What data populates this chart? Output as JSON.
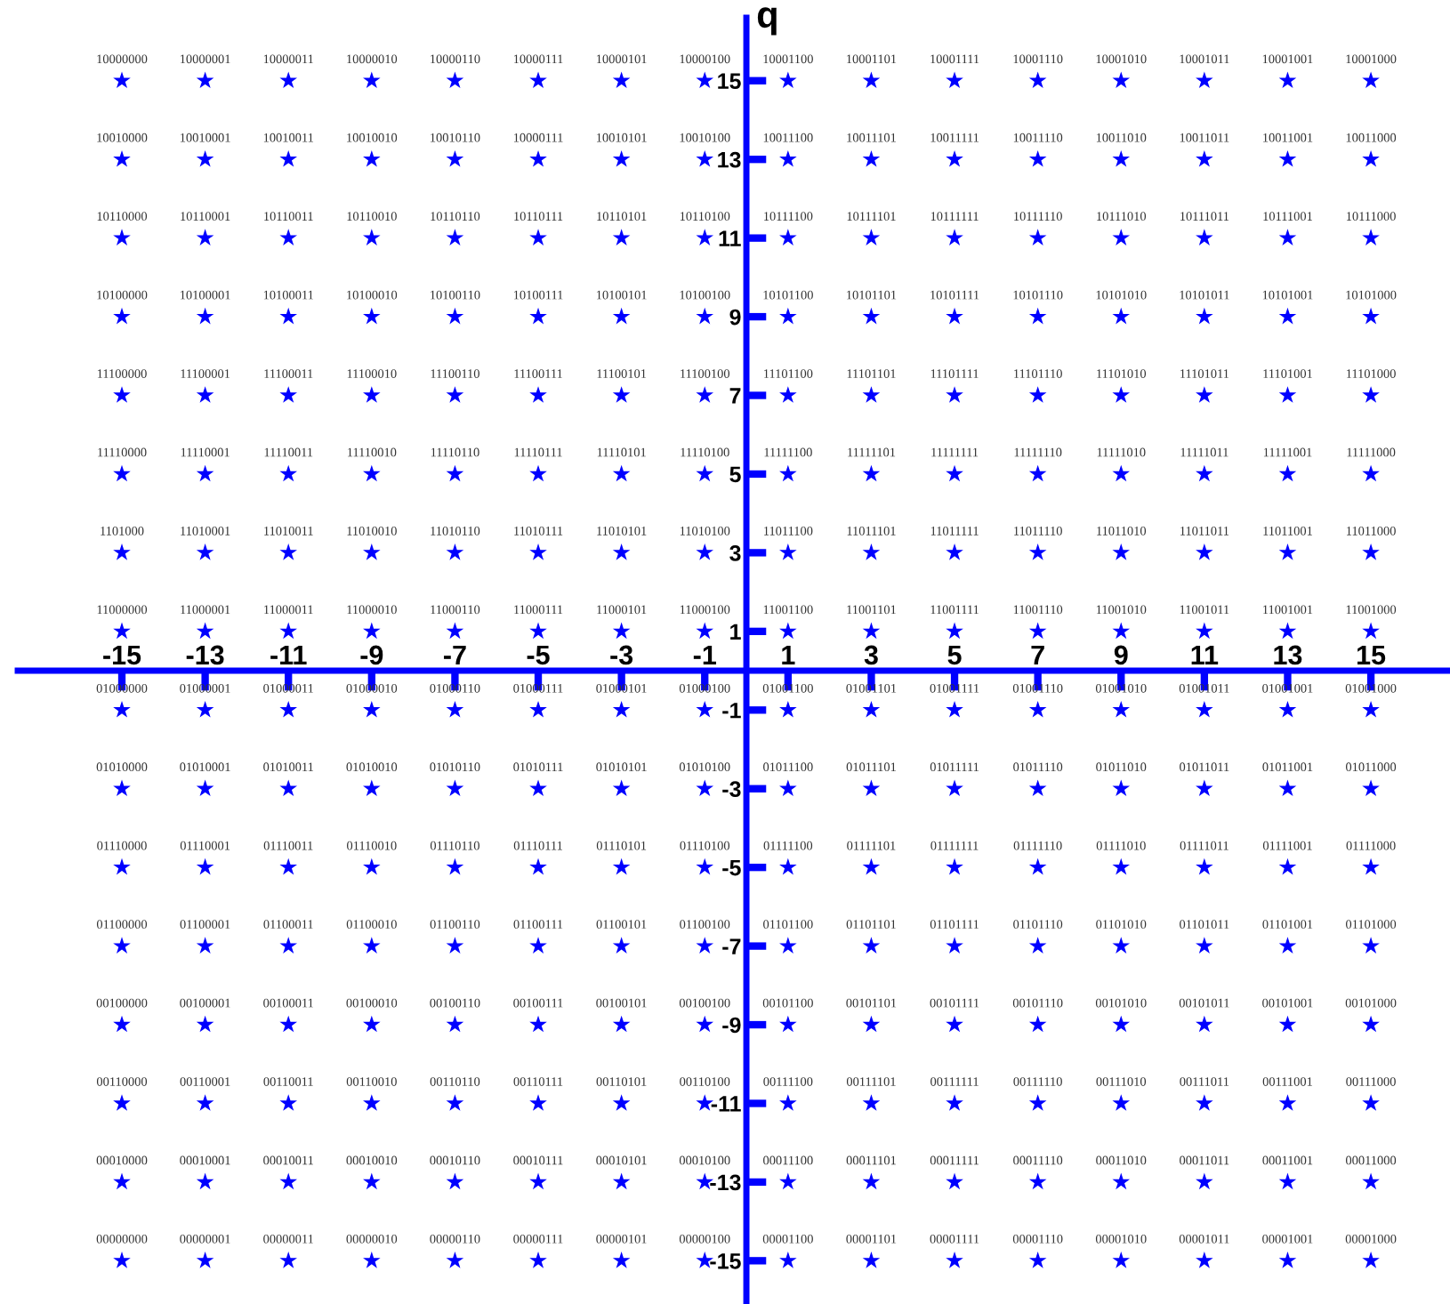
{
  "chart_data": {
    "type": "scatter",
    "ylabel": "q",
    "marker": "star",
    "grid": false,
    "xlim": [
      -17.5,
      16.9
    ],
    "ylim": [
      -16.1,
      16.6
    ],
    "xticks": [
      -15,
      -13,
      -11,
      -9,
      -7,
      -5,
      -3,
      -1,
      1,
      3,
      5,
      7,
      9,
      11,
      13,
      15
    ],
    "yticks": [
      -15,
      -13,
      -11,
      -9,
      -7,
      -5,
      -3,
      -1,
      1,
      3,
      5,
      7,
      9,
      11,
      13,
      15
    ],
    "series": [
      {
        "color": "#0000ff",
        "x": [
          -15,
          -13,
          -11,
          -9,
          -7,
          -5,
          -3,
          -1,
          1,
          3,
          5,
          7,
          9,
          11,
          13,
          15,
          -15,
          -13,
          -11,
          -9,
          -7,
          -5,
          -3,
          -1,
          1,
          3,
          5,
          7,
          9,
          11,
          13,
          15,
          -15,
          -13,
          -11,
          -9,
          -7,
          -5,
          -3,
          -1,
          1,
          3,
          5,
          7,
          9,
          11,
          13,
          15,
          -15,
          -13,
          -11,
          -9,
          -7,
          -5,
          -3,
          -1,
          1,
          3,
          5,
          7,
          9,
          11,
          13,
          15,
          -15,
          -13,
          -11,
          -9,
          -7,
          -5,
          -3,
          -1,
          1,
          3,
          5,
          7,
          9,
          11,
          13,
          15,
          -15,
          -13,
          -11,
          -9,
          -7,
          -5,
          -3,
          -1,
          1,
          3,
          5,
          7,
          9,
          11,
          13,
          15,
          -15,
          -13,
          -11,
          -9,
          -7,
          -5,
          -3,
          -1,
          1,
          3,
          5,
          7,
          9,
          11,
          13,
          15,
          -15,
          -13,
          -11,
          -9,
          -7,
          -5,
          -3,
          -1,
          1,
          3,
          5,
          7,
          9,
          11,
          13,
          15,
          -15,
          -13,
          -11,
          -9,
          -7,
          -5,
          -3,
          -1,
          1,
          3,
          5,
          7,
          9,
          11,
          13,
          15,
          -15,
          -13,
          -11,
          -9,
          -7,
          -5,
          -3,
          -1,
          1,
          3,
          5,
          7,
          9,
          11,
          13,
          15,
          -15,
          -13,
          -11,
          -9,
          -7,
          -5,
          -3,
          -1,
          1,
          3,
          5,
          7,
          9,
          11,
          13,
          15,
          -15,
          -13,
          -11,
          -9,
          -7,
          -5,
          -3,
          -1,
          1,
          3,
          5,
          7,
          9,
          11,
          13,
          15,
          -15,
          -13,
          -11,
          -9,
          -7,
          -5,
          -3,
          -1,
          1,
          3,
          5,
          7,
          9,
          11,
          13,
          15,
          -15,
          -13,
          -11,
          -9,
          -7,
          -5,
          -3,
          -1,
          1,
          3,
          5,
          7,
          9,
          11,
          13,
          15,
          -15,
          -13,
          -11,
          -9,
          -7,
          -5,
          -3,
          -1,
          1,
          3,
          5,
          7,
          9,
          11,
          13,
          15,
          -15,
          -13,
          -11,
          -9,
          -7,
          -5,
          -3,
          -1,
          1,
          3,
          5,
          7,
          9,
          11,
          13,
          15
        ],
        "values": [
          15,
          15,
          15,
          15,
          15,
          15,
          15,
          15,
          15,
          15,
          15,
          15,
          15,
          15,
          15,
          15,
          13,
          13,
          13,
          13,
          13,
          13,
          13,
          13,
          13,
          13,
          13,
          13,
          13,
          13,
          13,
          13,
          11,
          11,
          11,
          11,
          11,
          11,
          11,
          11,
          11,
          11,
          11,
          11,
          11,
          11,
          11,
          11,
          9,
          9,
          9,
          9,
          9,
          9,
          9,
          9,
          9,
          9,
          9,
          9,
          9,
          9,
          9,
          9,
          7,
          7,
          7,
          7,
          7,
          7,
          7,
          7,
          7,
          7,
          7,
          7,
          7,
          7,
          7,
          7,
          5,
          5,
          5,
          5,
          5,
          5,
          5,
          5,
          5,
          5,
          5,
          5,
          5,
          5,
          5,
          5,
          3,
          3,
          3,
          3,
          3,
          3,
          3,
          3,
          3,
          3,
          3,
          3,
          3,
          3,
          3,
          3,
          1,
          1,
          1,
          1,
          1,
          1,
          1,
          1,
          1,
          1,
          1,
          1,
          1,
          1,
          1,
          1,
          -1,
          -1,
          -1,
          -1,
          -1,
          -1,
          -1,
          -1,
          -1,
          -1,
          -1,
          -1,
          -1,
          -1,
          -1,
          -1,
          -3,
          -3,
          -3,
          -3,
          -3,
          -3,
          -3,
          -3,
          -3,
          -3,
          -3,
          -3,
          -3,
          -3,
          -3,
          -3,
          -5,
          -5,
          -5,
          -5,
          -5,
          -5,
          -5,
          -5,
          -5,
          -5,
          -5,
          -5,
          -5,
          -5,
          -5,
          -5,
          -7,
          -7,
          -7,
          -7,
          -7,
          -7,
          -7,
          -7,
          -7,
          -7,
          -7,
          -7,
          -7,
          -7,
          -7,
          -7,
          -9,
          -9,
          -9,
          -9,
          -9,
          -9,
          -9,
          -9,
          -9,
          -9,
          -9,
          -9,
          -9,
          -9,
          -9,
          -9,
          -11,
          -11,
          -11,
          -11,
          -11,
          -11,
          -11,
          -11,
          -11,
          -11,
          -11,
          -11,
          -11,
          -11,
          -11,
          -11,
          -13,
          -13,
          -13,
          -13,
          -13,
          -13,
          -13,
          -13,
          -13,
          -13,
          -13,
          -13,
          -13,
          -13,
          -13,
          -13,
          -15,
          -15,
          -15,
          -15,
          -15,
          -15,
          -15,
          -15,
          -15,
          -15,
          -15,
          -15,
          -15,
          -15,
          -15,
          -15
        ]
      }
    ],
    "annotations": [
      {
        "text": "10000000",
        "x": -15,
        "y": 15
      },
      {
        "text": "10000001",
        "x": -13,
        "y": 15
      },
      {
        "text": "10000011",
        "x": -11,
        "y": 15
      },
      {
        "text": "10000010",
        "x": -9,
        "y": 15
      },
      {
        "text": "10000110",
        "x": -7,
        "y": 15
      },
      {
        "text": "10000111",
        "x": -5,
        "y": 15
      },
      {
        "text": "10000101",
        "x": -3,
        "y": 15
      },
      {
        "text": "10000100",
        "x": -1,
        "y": 15
      },
      {
        "text": "10001100",
        "x": 1,
        "y": 15
      },
      {
        "text": "10001101",
        "x": 3,
        "y": 15
      },
      {
        "text": "10001111",
        "x": 5,
        "y": 15
      },
      {
        "text": "10001110",
        "x": 7,
        "y": 15
      },
      {
        "text": "10001010",
        "x": 9,
        "y": 15
      },
      {
        "text": "10001011",
        "x": 11,
        "y": 15
      },
      {
        "text": "10001001",
        "x": 13,
        "y": 15
      },
      {
        "text": "10001000",
        "x": 15,
        "y": 15
      },
      {
        "text": "10010000",
        "x": -15,
        "y": 13
      },
      {
        "text": "10010001",
        "x": -13,
        "y": 13
      },
      {
        "text": "10010011",
        "x": -11,
        "y": 13
      },
      {
        "text": "10010010",
        "x": -9,
        "y": 13
      },
      {
        "text": "10010110",
        "x": -7,
        "y": 13
      },
      {
        "text": "10000111",
        "x": -5,
        "y": 13
      },
      {
        "text": "10010101",
        "x": -3,
        "y": 13
      },
      {
        "text": "10010100",
        "x": -1,
        "y": 13
      },
      {
        "text": "10011100",
        "x": 1,
        "y": 13
      },
      {
        "text": "10011101",
        "x": 3,
        "y": 13
      },
      {
        "text": "10011111",
        "x": 5,
        "y": 13
      },
      {
        "text": "10011110",
        "x": 7,
        "y": 13
      },
      {
        "text": "10011010",
        "x": 9,
        "y": 13
      },
      {
        "text": "10011011",
        "x": 11,
        "y": 13
      },
      {
        "text": "10011001",
        "x": 13,
        "y": 13
      },
      {
        "text": "10011000",
        "x": 15,
        "y": 13
      },
      {
        "text": "10110000",
        "x": -15,
        "y": 11
      },
      {
        "text": "10110001",
        "x": -13,
        "y": 11
      },
      {
        "text": "10110011",
        "x": -11,
        "y": 11
      },
      {
        "text": "10110010",
        "x": -9,
        "y": 11
      },
      {
        "text": "10110110",
        "x": -7,
        "y": 11
      },
      {
        "text": "10110111",
        "x": -5,
        "y": 11
      },
      {
        "text": "10110101",
        "x": -3,
        "y": 11
      },
      {
        "text": "10110100",
        "x": -1,
        "y": 11
      },
      {
        "text": "10111100",
        "x": 1,
        "y": 11
      },
      {
        "text": "10111101",
        "x": 3,
        "y": 11
      },
      {
        "text": "10111111",
        "x": 5,
        "y": 11
      },
      {
        "text": "10111110",
        "x": 7,
        "y": 11
      },
      {
        "text": "10111010",
        "x": 9,
        "y": 11
      },
      {
        "text": "10111011",
        "x": 11,
        "y": 11
      },
      {
        "text": "10111001",
        "x": 13,
        "y": 11
      },
      {
        "text": "10111000",
        "x": 15,
        "y": 11
      },
      {
        "text": "10100000",
        "x": -15,
        "y": 9
      },
      {
        "text": "10100001",
        "x": -13,
        "y": 9
      },
      {
        "text": "10100011",
        "x": -11,
        "y": 9
      },
      {
        "text": "10100010",
        "x": -9,
        "y": 9
      },
      {
        "text": "10100110",
        "x": -7,
        "y": 9
      },
      {
        "text": "10100111",
        "x": -5,
        "y": 9
      },
      {
        "text": "10100101",
        "x": -3,
        "y": 9
      },
      {
        "text": "10100100",
        "x": -1,
        "y": 9
      },
      {
        "text": "10101100",
        "x": 1,
        "y": 9
      },
      {
        "text": "10101101",
        "x": 3,
        "y": 9
      },
      {
        "text": "10101111",
        "x": 5,
        "y": 9
      },
      {
        "text": "10101110",
        "x": 7,
        "y": 9
      },
      {
        "text": "10101010",
        "x": 9,
        "y": 9
      },
      {
        "text": "10101011",
        "x": 11,
        "y": 9
      },
      {
        "text": "10101001",
        "x": 13,
        "y": 9
      },
      {
        "text": "10101000",
        "x": 15,
        "y": 9
      },
      {
        "text": "11100000",
        "x": -15,
        "y": 7
      },
      {
        "text": "11100001",
        "x": -13,
        "y": 7
      },
      {
        "text": "11100011",
        "x": -11,
        "y": 7
      },
      {
        "text": "11100010",
        "x": -9,
        "y": 7
      },
      {
        "text": "11100110",
        "x": -7,
        "y": 7
      },
      {
        "text": "11100111",
        "x": -5,
        "y": 7
      },
      {
        "text": "11100101",
        "x": -3,
        "y": 7
      },
      {
        "text": "11100100",
        "x": -1,
        "y": 7
      },
      {
        "text": "11101100",
        "x": 1,
        "y": 7
      },
      {
        "text": "11101101",
        "x": 3,
        "y": 7
      },
      {
        "text": "11101111",
        "x": 5,
        "y": 7
      },
      {
        "text": "11101110",
        "x": 7,
        "y": 7
      },
      {
        "text": "11101010",
        "x": 9,
        "y": 7
      },
      {
        "text": "11101011",
        "x": 11,
        "y": 7
      },
      {
        "text": "11101001",
        "x": 13,
        "y": 7
      },
      {
        "text": "11101000",
        "x": 15,
        "y": 7
      },
      {
        "text": "11110000",
        "x": -15,
        "y": 5
      },
      {
        "text": "11110001",
        "x": -13,
        "y": 5
      },
      {
        "text": "11110011",
        "x": -11,
        "y": 5
      },
      {
        "text": "11110010",
        "x": -9,
        "y": 5
      },
      {
        "text": "11110110",
        "x": -7,
        "y": 5
      },
      {
        "text": "11110111",
        "x": -5,
        "y": 5
      },
      {
        "text": "11110101",
        "x": -3,
        "y": 5
      },
      {
        "text": "11110100",
        "x": -1,
        "y": 5
      },
      {
        "text": "11111100",
        "x": 1,
        "y": 5
      },
      {
        "text": "11111101",
        "x": 3,
        "y": 5
      },
      {
        "text": "11111111",
        "x": 5,
        "y": 5
      },
      {
        "text": "11111110",
        "x": 7,
        "y": 5
      },
      {
        "text": "11111010",
        "x": 9,
        "y": 5
      },
      {
        "text": "11111011",
        "x": 11,
        "y": 5
      },
      {
        "text": "11111001",
        "x": 13,
        "y": 5
      },
      {
        "text": "11111000",
        "x": 15,
        "y": 5
      },
      {
        "text": "1101000",
        "x": -15,
        "y": 3
      },
      {
        "text": "11010001",
        "x": -13,
        "y": 3
      },
      {
        "text": "11010011",
        "x": -11,
        "y": 3
      },
      {
        "text": "11010010",
        "x": -9,
        "y": 3
      },
      {
        "text": "11010110",
        "x": -7,
        "y": 3
      },
      {
        "text": "11010111",
        "x": -5,
        "y": 3
      },
      {
        "text": "11010101",
        "x": -3,
        "y": 3
      },
      {
        "text": "11010100",
        "x": -1,
        "y": 3
      },
      {
        "text": "11011100",
        "x": 1,
        "y": 3
      },
      {
        "text": "11011101",
        "x": 3,
        "y": 3
      },
      {
        "text": "11011111",
        "x": 5,
        "y": 3
      },
      {
        "text": "11011110",
        "x": 7,
        "y": 3
      },
      {
        "text": "11011010",
        "x": 9,
        "y": 3
      },
      {
        "text": "11011011",
        "x": 11,
        "y": 3
      },
      {
        "text": "11011001",
        "x": 13,
        "y": 3
      },
      {
        "text": "11011000",
        "x": 15,
        "y": 3
      },
      {
        "text": "11000000",
        "x": -15,
        "y": 1
      },
      {
        "text": "11000001",
        "x": -13,
        "y": 1
      },
      {
        "text": "11000011",
        "x": -11,
        "y": 1
      },
      {
        "text": "11000010",
        "x": -9,
        "y": 1
      },
      {
        "text": "11000110",
        "x": -7,
        "y": 1
      },
      {
        "text": "11000111",
        "x": -5,
        "y": 1
      },
      {
        "text": "11000101",
        "x": -3,
        "y": 1
      },
      {
        "text": "11000100",
        "x": -1,
        "y": 1
      },
      {
        "text": "11001100",
        "x": 1,
        "y": 1
      },
      {
        "text": "11001101",
        "x": 3,
        "y": 1
      },
      {
        "text": "11001111",
        "x": 5,
        "y": 1
      },
      {
        "text": "11001110",
        "x": 7,
        "y": 1
      },
      {
        "text": "11001010",
        "x": 9,
        "y": 1
      },
      {
        "text": "11001011",
        "x": 11,
        "y": 1
      },
      {
        "text": "11001001",
        "x": 13,
        "y": 1
      },
      {
        "text": "11001000",
        "x": 15,
        "y": 1
      },
      {
        "text": "01000000",
        "x": -15,
        "y": -1
      },
      {
        "text": "01000001",
        "x": -13,
        "y": -1
      },
      {
        "text": "01000011",
        "x": -11,
        "y": -1
      },
      {
        "text": "01000010",
        "x": -9,
        "y": -1
      },
      {
        "text": "01000110",
        "x": -7,
        "y": -1
      },
      {
        "text": "01000111",
        "x": -5,
        "y": -1
      },
      {
        "text": "01000101",
        "x": -3,
        "y": -1
      },
      {
        "text": "01000100",
        "x": -1,
        "y": -1
      },
      {
        "text": "01001100",
        "x": 1,
        "y": -1
      },
      {
        "text": "01001101",
        "x": 3,
        "y": -1
      },
      {
        "text": "01001111",
        "x": 5,
        "y": -1
      },
      {
        "text": "01001110",
        "x": 7,
        "y": -1
      },
      {
        "text": "01001010",
        "x": 9,
        "y": -1
      },
      {
        "text": "01001011",
        "x": 11,
        "y": -1
      },
      {
        "text": "01001001",
        "x": 13,
        "y": -1
      },
      {
        "text": "01001000",
        "x": 15,
        "y": -1
      },
      {
        "text": "01010000",
        "x": -15,
        "y": -3
      },
      {
        "text": "01010001",
        "x": -13,
        "y": -3
      },
      {
        "text": "01010011",
        "x": -11,
        "y": -3
      },
      {
        "text": "01010010",
        "x": -9,
        "y": -3
      },
      {
        "text": "01010110",
        "x": -7,
        "y": -3
      },
      {
        "text": "01010111",
        "x": -5,
        "y": -3
      },
      {
        "text": "01010101",
        "x": -3,
        "y": -3
      },
      {
        "text": "01010100",
        "x": -1,
        "y": -3
      },
      {
        "text": "01011100",
        "x": 1,
        "y": -3
      },
      {
        "text": "01011101",
        "x": 3,
        "y": -3
      },
      {
        "text": "01011111",
        "x": 5,
        "y": -3
      },
      {
        "text": "01011110",
        "x": 7,
        "y": -3
      },
      {
        "text": "01011010",
        "x": 9,
        "y": -3
      },
      {
        "text": "01011011",
        "x": 11,
        "y": -3
      },
      {
        "text": "01011001",
        "x": 13,
        "y": -3
      },
      {
        "text": "01011000",
        "x": 15,
        "y": -3
      },
      {
        "text": "01110000",
        "x": -15,
        "y": -5
      },
      {
        "text": "01110001",
        "x": -13,
        "y": -5
      },
      {
        "text": "01110011",
        "x": -11,
        "y": -5
      },
      {
        "text": "01110010",
        "x": -9,
        "y": -5
      },
      {
        "text": "01110110",
        "x": -7,
        "y": -5
      },
      {
        "text": "01110111",
        "x": -5,
        "y": -5
      },
      {
        "text": "01110101",
        "x": -3,
        "y": -5
      },
      {
        "text": "01110100",
        "x": -1,
        "y": -5
      },
      {
        "text": "01111100",
        "x": 1,
        "y": -5
      },
      {
        "text": "01111101",
        "x": 3,
        "y": -5
      },
      {
        "text": "01111111",
        "x": 5,
        "y": -5
      },
      {
        "text": "01111110",
        "x": 7,
        "y": -5
      },
      {
        "text": "01111010",
        "x": 9,
        "y": -5
      },
      {
        "text": "01111011",
        "x": 11,
        "y": -5
      },
      {
        "text": "01111001",
        "x": 13,
        "y": -5
      },
      {
        "text": "01111000",
        "x": 15,
        "y": -5
      },
      {
        "text": "01100000",
        "x": -15,
        "y": -7
      },
      {
        "text": "01100001",
        "x": -13,
        "y": -7
      },
      {
        "text": "01100011",
        "x": -11,
        "y": -7
      },
      {
        "text": "01100010",
        "x": -9,
        "y": -7
      },
      {
        "text": "01100110",
        "x": -7,
        "y": -7
      },
      {
        "text": "01100111",
        "x": -5,
        "y": -7
      },
      {
        "text": "01100101",
        "x": -3,
        "y": -7
      },
      {
        "text": "01100100",
        "x": -1,
        "y": -7
      },
      {
        "text": "01101100",
        "x": 1,
        "y": -7
      },
      {
        "text": "01101101",
        "x": 3,
        "y": -7
      },
      {
        "text": "01101111",
        "x": 5,
        "y": -7
      },
      {
        "text": "01101110",
        "x": 7,
        "y": -7
      },
      {
        "text": "01101010",
        "x": 9,
        "y": -7
      },
      {
        "text": "01101011",
        "x": 11,
        "y": -7
      },
      {
        "text": "01101001",
        "x": 13,
        "y": -7
      },
      {
        "text": "01101000",
        "x": 15,
        "y": -7
      },
      {
        "text": "00100000",
        "x": -15,
        "y": -9
      },
      {
        "text": "00100001",
        "x": -13,
        "y": -9
      },
      {
        "text": "00100011",
        "x": -11,
        "y": -9
      },
      {
        "text": "00100010",
        "x": -9,
        "y": -9
      },
      {
        "text": "00100110",
        "x": -7,
        "y": -9
      },
      {
        "text": "00100111",
        "x": -5,
        "y": -9
      },
      {
        "text": "00100101",
        "x": -3,
        "y": -9
      },
      {
        "text": "00100100",
        "x": -1,
        "y": -9
      },
      {
        "text": "00101100",
        "x": 1,
        "y": -9
      },
      {
        "text": "00101101",
        "x": 3,
        "y": -9
      },
      {
        "text": "00101111",
        "x": 5,
        "y": -9
      },
      {
        "text": "00101110",
        "x": 7,
        "y": -9
      },
      {
        "text": "00101010",
        "x": 9,
        "y": -9
      },
      {
        "text": "00101011",
        "x": 11,
        "y": -9
      },
      {
        "text": "00101001",
        "x": 13,
        "y": -9
      },
      {
        "text": "00101000",
        "x": 15,
        "y": -9
      },
      {
        "text": "00110000",
        "x": -15,
        "y": -11
      },
      {
        "text": "00110001",
        "x": -13,
        "y": -11
      },
      {
        "text": "00110011",
        "x": -11,
        "y": -11
      },
      {
        "text": "00110010",
        "x": -9,
        "y": -11
      },
      {
        "text": "00110110",
        "x": -7,
        "y": -11
      },
      {
        "text": "00110111",
        "x": -5,
        "y": -11
      },
      {
        "text": "00110101",
        "x": -3,
        "y": -11
      },
      {
        "text": "00110100",
        "x": -1,
        "y": -11
      },
      {
        "text": "00111100",
        "x": 1,
        "y": -11
      },
      {
        "text": "00111101",
        "x": 3,
        "y": -11
      },
      {
        "text": "00111111",
        "x": 5,
        "y": -11
      },
      {
        "text": "00111110",
        "x": 7,
        "y": -11
      },
      {
        "text": "00111010",
        "x": 9,
        "y": -11
      },
      {
        "text": "00111011",
        "x": 11,
        "y": -11
      },
      {
        "text": "00111001",
        "x": 13,
        "y": -11
      },
      {
        "text": "00111000",
        "x": 15,
        "y": -11
      },
      {
        "text": "00010000",
        "x": -15,
        "y": -13
      },
      {
        "text": "00010001",
        "x": -13,
        "y": -13
      },
      {
        "text": "00010011",
        "x": -11,
        "y": -13
      },
      {
        "text": "00010010",
        "x": -9,
        "y": -13
      },
      {
        "text": "00010110",
        "x": -7,
        "y": -13
      },
      {
        "text": "00010111",
        "x": -5,
        "y": -13
      },
      {
        "text": "00010101",
        "x": -3,
        "y": -13
      },
      {
        "text": "00010100",
        "x": -1,
        "y": -13
      },
      {
        "text": "00011100",
        "x": 1,
        "y": -13
      },
      {
        "text": "00011101",
        "x": 3,
        "y": -13
      },
      {
        "text": "00011111",
        "x": 5,
        "y": -13
      },
      {
        "text": "00011110",
        "x": 7,
        "y": -13
      },
      {
        "text": "00011010",
        "x": 9,
        "y": -13
      },
      {
        "text": "00011011",
        "x": 11,
        "y": -13
      },
      {
        "text": "00011001",
        "x": 13,
        "y": -13
      },
      {
        "text": "00011000",
        "x": 15,
        "y": -13
      },
      {
        "text": "00000000",
        "x": -15,
        "y": -15
      },
      {
        "text": "00000001",
        "x": -13,
        "y": -15
      },
      {
        "text": "00000011",
        "x": -11,
        "y": -15
      },
      {
        "text": "00000010",
        "x": -9,
        "y": -15
      },
      {
        "text": "00000110",
        "x": -7,
        "y": -15
      },
      {
        "text": "00000111",
        "x": -5,
        "y": -15
      },
      {
        "text": "00000101",
        "x": -3,
        "y": -15
      },
      {
        "text": "00000100",
        "x": -1,
        "y": -15
      },
      {
        "text": "00001100",
        "x": 1,
        "y": -15
      },
      {
        "text": "00001101",
        "x": 3,
        "y": -15
      },
      {
        "text": "00001111",
        "x": 5,
        "y": -15
      },
      {
        "text": "00001110",
        "x": 7,
        "y": -15
      },
      {
        "text": "00001010",
        "x": 9,
        "y": -15
      },
      {
        "text": "00001011",
        "x": 11,
        "y": -15
      },
      {
        "text": "00001001",
        "x": 13,
        "y": -15
      },
      {
        "text": "00001000",
        "x": 15,
        "y": -15
      }
    ]
  }
}
